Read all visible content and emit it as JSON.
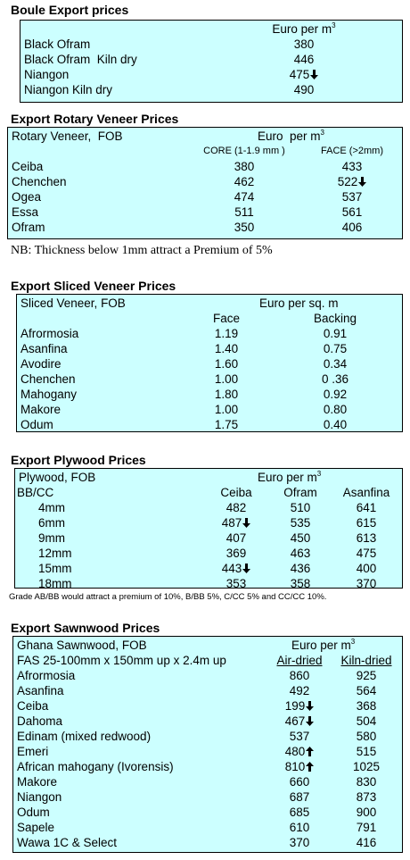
{
  "boule": {
    "title": "Boule Export prices",
    "unit": "Euro per m",
    "unit_exp": "3",
    "rows": [
      [
        "Black Ofram",
        "380"
      ],
      [
        "Black Ofram  Kiln dry",
        "446"
      ],
      [
        "Niangon",
        "475"
      ],
      [
        "Niangon Kiln dry",
        "490"
      ]
    ]
  },
  "rotary": {
    "title": "Export Rotary Veneer Prices",
    "label": "Rotary Veneer,  FOB",
    "unit": "Euro  per m",
    "unit_exp": "3",
    "columns": [
      "CORE (1-1.9 mm )",
      "FACE (>2mm)"
    ],
    "rows": [
      [
        "Ceiba",
        "380",
        "433"
      ],
      [
        "Chenchen",
        "462",
        "522"
      ],
      [
        "Ogea",
        "474",
        "537"
      ],
      [
        "Essa",
        "511",
        "561"
      ],
      [
        "Ofram",
        "350",
        "406"
      ]
    ],
    "note": "NB: Thickness below 1mm attract a Premium of 5%"
  },
  "sliced": {
    "title": "Export Sliced Veneer Prices",
    "label": "Sliced Veneer, FOB",
    "unit": "Euro per sq. m",
    "columns": [
      "Face",
      "Backing"
    ],
    "rows": [
      [
        "Afrormosia",
        "1.19",
        "0.91"
      ],
      [
        "Asanfina",
        "1.40",
        "0.75"
      ],
      [
        "Avodire",
        "1.60",
        "0.34"
      ],
      [
        "Chenchen",
        "1.00",
        "0 .36"
      ],
      [
        "Mahogany",
        "1.80",
        "0.92"
      ],
      [
        "Makore",
        "1.00",
        "0.80"
      ],
      [
        "Odum",
        "1.75",
        "0.40"
      ]
    ]
  },
  "plywood": {
    "title": "Export Plywood Prices",
    "label": "Plywood, FOB",
    "unit": "Euro per m",
    "unit_exp": "3",
    "stub": "BB/CC",
    "columns": [
      "Ceiba",
      "Ofram",
      "Asanfina"
    ],
    "rows": [
      [
        "4mm",
        "482",
        "510",
        "641"
      ],
      [
        "6mm",
        "487",
        "535",
        "615"
      ],
      [
        "9mm",
        "407",
        "450",
        "613"
      ],
      [
        "12mm",
        "369",
        "463",
        "475"
      ],
      [
        "15mm",
        "443",
        "436",
        "400"
      ],
      [
        "18mm",
        "353",
        "358",
        "370"
      ]
    ],
    "note": "Grade AB/BB would attract a premium of 10%, B/BB 5%, C/CC 5% and CC/CC 10%."
  },
  "sawnwood": {
    "title": "Export Sawnwood Prices",
    "label": "Ghana Sawnwood, FOB",
    "unit": "Euro per m",
    "unit_exp": "3",
    "stub": "FAS 25-100mm x 150mm up x 2.4m up",
    "columns": [
      "Air-dried",
      "Kiln-dried"
    ],
    "rows": [
      [
        "Afrormosia",
        "860",
        "925"
      ],
      [
        "Asanfina",
        "492",
        "564"
      ],
      [
        "Ceiba",
        "199",
        "368"
      ],
      [
        "Dahoma",
        "467",
        "504"
      ],
      [
        "Edinam (mixed redwood)",
        "537",
        "580"
      ],
      [
        "Emeri",
        "480",
        "515"
      ],
      [
        "African mahogany (Ivorensis)",
        "810",
        "1025"
      ],
      [
        "Makore",
        "660",
        "830"
      ],
      [
        "Niangon",
        "687",
        "873"
      ],
      [
        "Odum",
        "685",
        "900"
      ],
      [
        "Sapele",
        "610",
        "791"
      ],
      [
        "Wawa 1C & Select",
        "370",
        "416"
      ]
    ]
  }
}
